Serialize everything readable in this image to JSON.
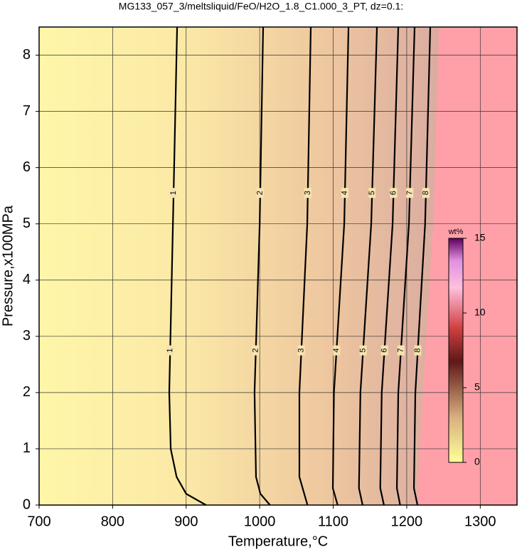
{
  "chart_data": {
    "type": "contour",
    "title": "MG133_057_3/meltsliquid/FeO/H2O_1.8_C1.000_3_PT, dz=0.1:",
    "xlabel": "Temperature,°C",
    "ylabel": "Pressure,x100MPa",
    "xlim": [
      700,
      1350
    ],
    "ylim": [
      0,
      8.5
    ],
    "xticks": [
      700,
      800,
      900,
      1000,
      1100,
      1200,
      1300
    ],
    "yticks": [
      0,
      1,
      2,
      3,
      4,
      5,
      6,
      7,
      8
    ],
    "grid": true,
    "contours": [
      {
        "level": 1,
        "x": [
          887.7,
          882,
          877,
          879,
          887,
          900,
          927
        ],
        "y": [
          8.5,
          5,
          2,
          1,
          0.5,
          0.2,
          0
        ]
      },
      {
        "level": 2,
        "x": [
          1004.7,
          1000,
          993,
          995,
          1001,
          1014
        ],
        "y": [
          8.5,
          5,
          2,
          0.5,
          0.2,
          0
        ]
      },
      {
        "level": 3,
        "x": [
          1069.5,
          1064.7,
          1054,
          1054,
          1065
        ],
        "y": [
          8.5,
          5,
          2,
          0.5,
          0
        ]
      },
      {
        "level": 4,
        "x": [
          1120.8,
          1115,
          1101,
          1099.5,
          1106
        ],
        "y": [
          8.5,
          5,
          2,
          0.3,
          0
        ]
      },
      {
        "level": 5,
        "x": [
          1159.5,
          1151.7,
          1137,
          1135,
          1140
        ],
        "y": [
          8.5,
          5,
          2,
          0.3,
          0
        ]
      },
      {
        "level": 6,
        "x": [
          1188.5,
          1180.8,
          1166,
          1164,
          1169
        ],
        "y": [
          8.5,
          5,
          2,
          0.3,
          0
        ]
      },
      {
        "level": 7,
        "x": [
          1210.7,
          1203,
          1188.5,
          1186.6,
          1191
        ],
        "y": [
          8.5,
          5,
          2,
          0.3,
          0
        ]
      },
      {
        "level": 8,
        "x": [
          1232,
          1225,
          1211.7,
          1209.8,
          1214.6
        ],
        "y": [
          8.5,
          5,
          2,
          0.3,
          0
        ]
      }
    ],
    "boundary": {
      "x": [
        1243.6,
        1236,
        1222,
        1215,
        1213
      ],
      "y": [
        8.5,
        5,
        2,
        0.3,
        0
      ],
      "color": "#ffa0a8"
    },
    "colorbar": {
      "label": "wt%",
      "lim": [
        0,
        15
      ],
      "ticks": [
        0,
        5,
        10,
        15
      ]
    }
  }
}
